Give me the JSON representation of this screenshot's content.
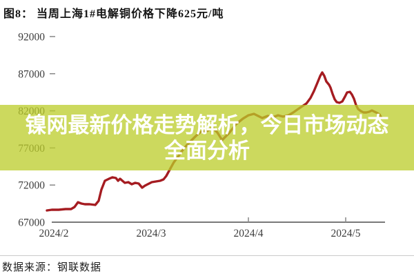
{
  "header": {
    "title": "图8： 当周上海1#电解铜价格下降625元/吨"
  },
  "overlay": {
    "line1": "镍网最新价格走势解析，今日市场动态",
    "line2": "全面分析"
  },
  "footer": {
    "source": "数据来源：钢联数据"
  },
  "colors": {
    "line": "#a51c21",
    "banner_fill": "rgba(187,204,40,0.75)",
    "banner_text": "#ffffff",
    "axis": "#4d4d4d",
    "tick": "#8e8e8e"
  },
  "chart_data": {
    "type": "line",
    "title": "当周上海1#电解铜价格下降625元/吨",
    "unit": "元/吨",
    "xlabel": "",
    "ylabel": "",
    "grid": false,
    "legend": "none",
    "x_tick_labels": [
      "2024/2",
      "2024/3",
      "2024/4",
      "2024/5"
    ],
    "x_tick_months": [
      2,
      3,
      4,
      5
    ],
    "x_axis_tick_marks_months": [
      4,
      5
    ],
    "y_ticks": [
      92000,
      87000,
      82000,
      77000,
      72000,
      67000
    ],
    "ylim": [
      67000,
      93700
    ],
    "xlim_months": [
      1.9,
      5.45
    ],
    "points": [
      [
        1.929,
        68580
      ],
      [
        1.979,
        68670
      ],
      [
        2.05,
        68670
      ],
      [
        2.121,
        68770
      ],
      [
        2.177,
        68770
      ],
      [
        2.213,
        69040
      ],
      [
        2.248,
        69690
      ],
      [
        2.284,
        69510
      ],
      [
        2.319,
        69420
      ],
      [
        2.369,
        69420
      ],
      [
        2.426,
        69320
      ],
      [
        2.461,
        69880
      ],
      [
        2.489,
        71370
      ],
      [
        2.525,
        72580
      ],
      [
        2.567,
        72850
      ],
      [
        2.603,
        73040
      ],
      [
        2.638,
        72950
      ],
      [
        2.66,
        72580
      ],
      [
        2.681,
        72850
      ],
      [
        2.73,
        72300
      ],
      [
        2.766,
        72390
      ],
      [
        2.801,
        72110
      ],
      [
        2.837,
        72300
      ],
      [
        2.872,
        72200
      ],
      [
        2.908,
        71650
      ],
      [
        2.936,
        71920
      ],
      [
        2.965,
        72110
      ],
      [
        3.007,
        72390
      ],
      [
        3.05,
        72480
      ],
      [
        3.092,
        72580
      ],
      [
        3.128,
        72760
      ],
      [
        3.156,
        73230
      ],
      [
        3.191,
        74060
      ],
      [
        3.234,
        75080
      ],
      [
        3.277,
        75830
      ],
      [
        3.326,
        76760
      ],
      [
        3.376,
        77500
      ],
      [
        3.418,
        78060
      ],
      [
        3.468,
        78710
      ],
      [
        3.511,
        79170
      ],
      [
        3.574,
        79270
      ],
      [
        3.631,
        79730
      ],
      [
        3.681,
        79080
      ],
      [
        3.73,
        78060
      ],
      [
        3.801,
        78990
      ],
      [
        3.872,
        80200
      ],
      [
        3.943,
        80940
      ],
      [
        4.0,
        81400
      ],
      [
        4.057,
        81590
      ],
      [
        4.099,
        81310
      ],
      [
        4.142,
        81030
      ],
      [
        4.199,
        81310
      ],
      [
        4.248,
        81120
      ],
      [
        4.305,
        81400
      ],
      [
        4.355,
        81220
      ],
      [
        4.411,
        81400
      ],
      [
        4.461,
        81780
      ],
      [
        4.511,
        82240
      ],
      [
        4.553,
        82610
      ],
      [
        4.596,
        82980
      ],
      [
        4.638,
        83730
      ],
      [
        4.674,
        84660
      ],
      [
        4.709,
        85770
      ],
      [
        4.738,
        86700
      ],
      [
        4.759,
        87170
      ],
      [
        4.78,
        86700
      ],
      [
        4.801,
        85960
      ],
      [
        4.83,
        85490
      ],
      [
        4.844,
        85120
      ],
      [
        4.865,
        84280
      ],
      [
        4.887,
        83540
      ],
      [
        4.908,
        83170
      ],
      [
        4.936,
        83080
      ],
      [
        4.965,
        83260
      ],
      [
        4.993,
        83910
      ],
      [
        5.014,
        84470
      ],
      [
        5.043,
        84560
      ],
      [
        5.064,
        84190
      ],
      [
        5.085,
        83630
      ],
      [
        5.106,
        82800
      ],
      [
        5.128,
        82240
      ],
      [
        5.156,
        81960
      ],
      [
        5.184,
        81780
      ],
      [
        5.213,
        81780
      ],
      [
        5.241,
        81870
      ],
      [
        5.27,
        82050
      ],
      [
        5.298,
        81870
      ],
      [
        5.326,
        81680
      ],
      [
        5.348,
        81500
      ],
      [
        5.369,
        81030
      ]
    ]
  }
}
